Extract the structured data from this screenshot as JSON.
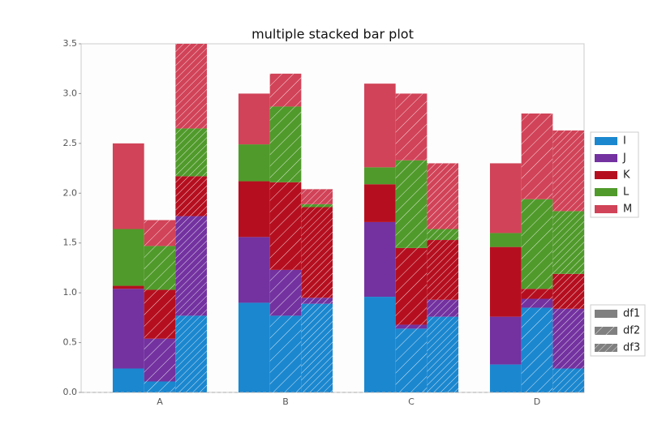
{
  "chart_data": {
    "type": "bar",
    "stacked": true,
    "title": "multiple stacked bar plot",
    "categories": [
      "A",
      "B",
      "C",
      "D"
    ],
    "ylim": [
      0,
      3.5
    ],
    "yticks": [
      {
        "value": 0,
        "label": "0.0"
      },
      0.5,
      {
        "value": 1,
        "label": "1.0"
      },
      1.5,
      {
        "value": 2,
        "label": "2.0"
      },
      2.5,
      {
        "value": 3,
        "label": "3.0"
      },
      3.5
    ],
    "series": [
      {
        "name": "I",
        "color": "#1b87cf"
      },
      {
        "name": "J",
        "color": "#7332a0"
      },
      {
        "name": "K",
        "color": "#b50f1f"
      },
      {
        "name": "L",
        "color": "#509a2b"
      },
      {
        "name": "M",
        "color": "#d14358"
      }
    ],
    "groups": [
      {
        "name": "df1",
        "hatch": null,
        "values": [
          [
            0.24,
            0.9,
            0.96,
            0.28
          ],
          [
            0.8,
            0.66,
            0.75,
            0.48
          ],
          [
            0.03,
            0.56,
            0.38,
            0.7
          ],
          [
            0.57,
            0.37,
            0.17,
            0.14
          ],
          [
            0.86,
            0.51,
            0.84,
            0.7
          ]
        ]
      },
      {
        "name": "df2",
        "hatch": "/",
        "values": [
          [
            0.11,
            0.77,
            0.64,
            0.85
          ],
          [
            0.43,
            0.46,
            0.04,
            0.09
          ],
          [
            0.49,
            0.88,
            0.77,
            0.1
          ],
          [
            0.44,
            0.76,
            0.88,
            0.9
          ],
          [
            0.26,
            0.33,
            0.67,
            0.86
          ]
        ]
      },
      {
        "name": "df3",
        "hatch": "//",
        "values": [
          [
            0.77,
            0.89,
            0.76,
            0.24
          ],
          [
            1.0,
            0.06,
            0.17,
            0.6
          ],
          [
            0.4,
            0.91,
            0.6,
            0.35
          ],
          [
            0.48,
            0.03,
            0.11,
            0.63
          ],
          [
            0.85,
            0.15,
            0.66,
            0.81
          ]
        ]
      }
    ]
  }
}
